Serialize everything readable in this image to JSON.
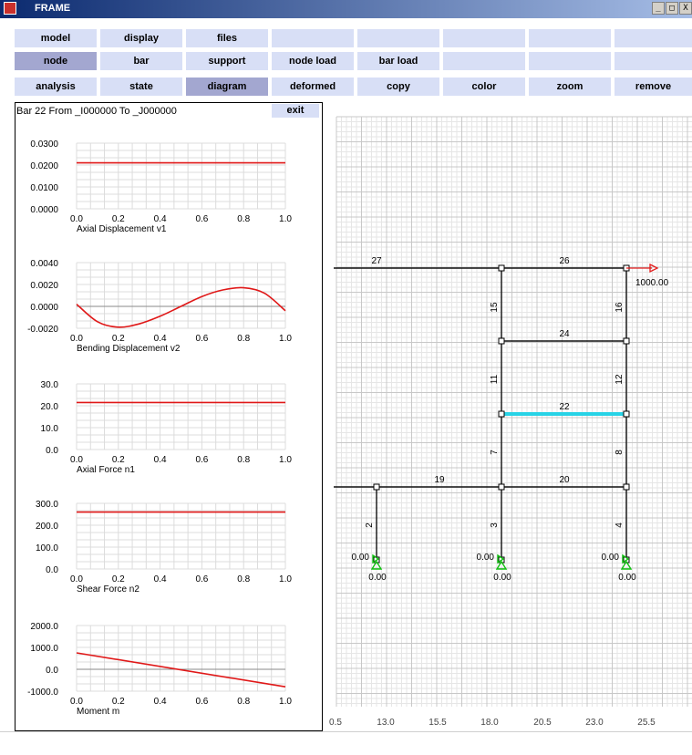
{
  "window": {
    "title": "FRAME",
    "controls": [
      "_",
      "□",
      "X"
    ]
  },
  "toolbar": {
    "row1": [
      "model",
      "display",
      "files",
      "",
      "",
      "",
      "",
      ""
    ],
    "row2": [
      "node",
      "bar",
      "support",
      "node load",
      "bar load",
      "",
      "",
      ""
    ],
    "row3": [
      "analysis",
      "state",
      "diagram",
      "deformed",
      "copy",
      "color",
      "zoom",
      "remove"
    ],
    "active": [
      "node",
      "diagram"
    ]
  },
  "bar_info": {
    "text": "Bar  22  From  _I000000  To   _J000000",
    "exit_label": "exit"
  },
  "chart_data": [
    {
      "type": "line",
      "title": "Axial  Displacement v1",
      "x": [
        0,
        1
      ],
      "series": [
        {
          "values": [
            0.021,
            0.021
          ]
        }
      ],
      "ylim": [
        0,
        0.03
      ],
      "yticks": [
        "0.0300",
        "0.0200",
        "0.0100",
        "0.0000"
      ],
      "xticks": [
        "0.0",
        "0.2",
        "0.4",
        "0.6",
        "0.8",
        "1.0"
      ]
    },
    {
      "type": "line",
      "title": "Bending Displacement v2",
      "x": [
        0,
        0.1,
        0.2,
        0.3,
        0.4,
        0.5,
        0.6,
        0.7,
        0.8,
        0.9,
        1.0
      ],
      "series": [
        {
          "values": [
            0.0002,
            -0.0014,
            -0.0019,
            -0.0016,
            -0.0009,
            0.0,
            0.0009,
            0.0015,
            0.0017,
            0.0012,
            -0.0004
          ]
        }
      ],
      "ylim": [
        -0.002,
        0.004
      ],
      "yticks": [
        "0.0040",
        "0.0020",
        "0.0000",
        "-0.0020"
      ],
      "xticks": [
        "0.0",
        "0.2",
        "0.4",
        "0.6",
        "0.8",
        "1.0"
      ]
    },
    {
      "type": "line",
      "title": "Axial Force  n1",
      "x": [
        0,
        1
      ],
      "series": [
        {
          "values": [
            21.5,
            21.5
          ]
        }
      ],
      "ylim": [
        0,
        30
      ],
      "yticks": [
        "30.0",
        "20.0",
        "10.0",
        "0.0"
      ],
      "xticks": [
        "0.0",
        "0.2",
        "0.4",
        "0.6",
        "0.8",
        "1.0"
      ]
    },
    {
      "type": "line",
      "title": "Shear Force  n2",
      "x": [
        0,
        1
      ],
      "series": [
        {
          "values": [
            260,
            260
          ]
        }
      ],
      "ylim": [
        0,
        300
      ],
      "yticks": [
        "300.0",
        "200.0",
        "100.0",
        "0.0"
      ],
      "xticks": [
        "0.0",
        "0.2",
        "0.4",
        "0.6",
        "0.8",
        "1.0"
      ]
    },
    {
      "type": "line",
      "title": "Moment     m",
      "x": [
        0,
        1
      ],
      "series": [
        {
          "values": [
            750,
            -800
          ]
        }
      ],
      "ylim": [
        -1000,
        2000
      ],
      "yticks": [
        "2000.0",
        "1000.0",
        "0.0",
        "-1000.0"
      ],
      "xticks": [
        "0.0",
        "0.2",
        "0.4",
        "0.6",
        "0.8",
        "1.0"
      ]
    }
  ],
  "structure": {
    "x_axis_labels": [
      "0.5",
      "13.0",
      "15.5",
      "18.0",
      "20.5",
      "23.0",
      "25.5"
    ],
    "bar_labels": [
      "27",
      "26",
      "15",
      "16",
      "24",
      "11",
      "12",
      "22",
      "7",
      "8",
      "19",
      "20",
      "2",
      "3",
      "4"
    ],
    "load_label": "1000.00",
    "support_labels": [
      "0.00",
      "0.00",
      "0.00"
    ],
    "reaction_labels": [
      "0.00",
      "0.00",
      "0.00"
    ],
    "highlight_bar": "22",
    "colors": {
      "highlight": "#27d3e6",
      "load": "#e21b1b",
      "support": "#10c010",
      "grid_major": "#c8c8c8",
      "grid_minor": "#e6e6e6"
    }
  }
}
